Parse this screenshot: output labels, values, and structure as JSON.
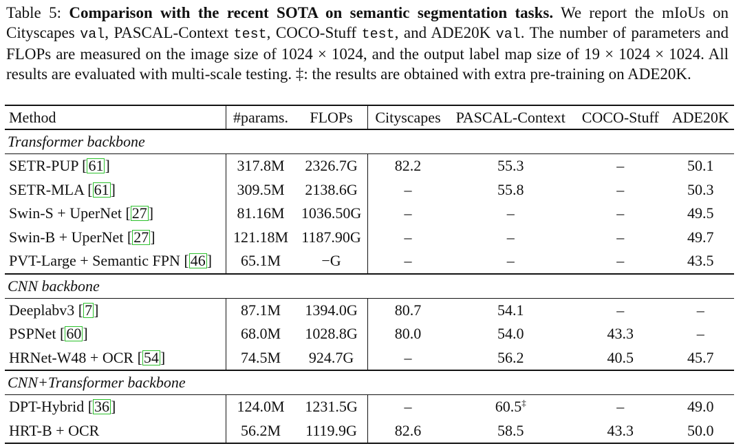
{
  "caption": {
    "label": "Table 5:",
    "bold": "Comparison with the recent SOTA on semantic segmentation tasks.",
    "p1": "We report the mIoUs on Cityscapes",
    "m1": "val",
    "p2": ", PASCAL-Context",
    "m2": "test",
    "p3": ", COCO-Stuff",
    "m3": "test",
    "p4": ", and ADE20K",
    "m4": "val",
    "p5": ". The number of parameters and FLOPs are measured on the image size of 1024 × 1024, and the output label map size of 19 × 1024 × 1024. All results are evaluated with multi-scale testing. ‡: the results are obtained with extra pre-training on ADE20K."
  },
  "columns": [
    "Method",
    "#params.",
    "FLOPs",
    "Cityscapes",
    "PASCAL-Context",
    "COCO-Stuff",
    "ADE20K"
  ],
  "sections": [
    {
      "title": "Transformer backbone",
      "rows": [
        {
          "method": "SETR-PUP",
          "ref": "61",
          "params": "317.8M",
          "flops": "2326.7G",
          "cityscapes": "82.2",
          "pascal": "55.3",
          "pascal_sup": "",
          "coco": "–",
          "ade": "50.1"
        },
        {
          "method": "SETR-MLA",
          "ref": "61",
          "params": "309.5M",
          "flops": "2138.6G",
          "cityscapes": "–",
          "pascal": "55.8",
          "pascal_sup": "",
          "coco": "–",
          "ade": "50.3"
        },
        {
          "method": "Swin-S + UperNet",
          "ref": "27",
          "params": "81.16M",
          "flops": "1036.50G",
          "cityscapes": "–",
          "pascal": "–",
          "pascal_sup": "",
          "coco": "–",
          "ade": "49.5"
        },
        {
          "method": "Swin-B + UperNet",
          "ref": "27",
          "params": "121.18M",
          "flops": "1187.90G",
          "cityscapes": "–",
          "pascal": "–",
          "pascal_sup": "",
          "coco": "–",
          "ade": "49.7"
        },
        {
          "method": "PVT-Large + Semantic FPN",
          "ref": "46",
          "params": "65.1M",
          "flops": "−G",
          "cityscapes": "–",
          "pascal": "–",
          "pascal_sup": "",
          "coco": "–",
          "ade": "43.5"
        }
      ]
    },
    {
      "title": "CNN backbone",
      "rows": [
        {
          "method": "Deeplabv3",
          "ref": "7",
          "params": "87.1M",
          "flops": "1394.0G",
          "cityscapes": "80.7",
          "pascal": "54.1",
          "pascal_sup": "",
          "coco": "–",
          "ade": "–"
        },
        {
          "method": "PSPNet",
          "ref": "60",
          "params": "68.0M",
          "flops": "1028.8G",
          "cityscapes": "80.0",
          "pascal": "54.0",
          "pascal_sup": "",
          "coco": "43.3",
          "ade": "–"
        },
        {
          "method": "HRNet-W48 + OCR",
          "ref": "54",
          "params": "74.5M",
          "flops": "924.7G",
          "cityscapes": "–",
          "pascal": "56.2",
          "pascal_sup": "",
          "coco": "40.5",
          "ade": "45.7"
        }
      ]
    },
    {
      "title": "CNN+Transformer backbone",
      "rows": [
        {
          "method": "DPT-Hybrid",
          "ref": "36",
          "params": "124.0M",
          "flops": "1231.5G",
          "cityscapes": "–",
          "pascal": "60.5",
          "pascal_sup": "‡",
          "coco": "–",
          "ade": "49.0"
        },
        {
          "method": "HRT-B + OCR",
          "ref": "",
          "params": "56.2M",
          "flops": "1119.9G",
          "cityscapes": "82.6",
          "pascal": "58.5",
          "pascal_sup": "",
          "coco": "43.3",
          "ade": "50.0"
        }
      ]
    }
  ]
}
